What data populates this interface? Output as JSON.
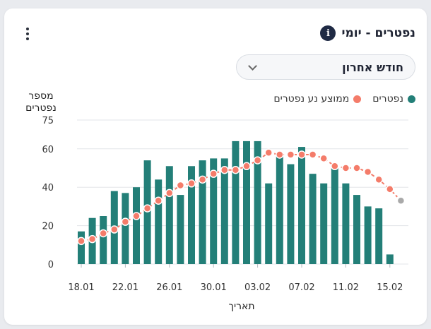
{
  "header": {
    "title": "נפטרים - יומי",
    "info_icon": "info-icon",
    "menu_icon": "kebab-menu-icon"
  },
  "filter": {
    "selected": "חודש אחרון",
    "icon": "chevron-down-icon"
  },
  "colors": {
    "bars": "#237f78",
    "average": "#f47c6a",
    "projected_point": "#a9a9a9",
    "grid": "#e3e5e8"
  },
  "chart_data": {
    "type": "bar",
    "xlabel": "תאריך",
    "ylabel_line1": "מספר",
    "ylabel_line2": "נפטרים",
    "ylim": [
      0,
      75
    ],
    "yticks": [
      0,
      20,
      40,
      60,
      75
    ],
    "grid": true,
    "legend_position": "top-right",
    "x_tick_labels": [
      "18.01",
      "22.01",
      "26.01",
      "30.01",
      "03.02",
      "07.02",
      "11.02",
      "15.02"
    ],
    "dates": [
      "18.01",
      "19.01",
      "20.01",
      "21.01",
      "22.01",
      "23.01",
      "24.01",
      "25.01",
      "26.01",
      "27.01",
      "28.01",
      "29.01",
      "30.01",
      "31.01",
      "01.02",
      "02.02",
      "03.02",
      "04.02",
      "05.02",
      "06.02",
      "07.02",
      "08.02",
      "09.02",
      "10.02",
      "11.02",
      "12.02",
      "13.02",
      "14.02",
      "15.02",
      "16.02"
    ],
    "series": [
      {
        "name": "נפטרים",
        "kind": "bar",
        "values": [
          17,
          24,
          25,
          38,
          37,
          40,
          54,
          44,
          51,
          36,
          51,
          54,
          55,
          55,
          64,
          64,
          64,
          42,
          57,
          52,
          61,
          47,
          42,
          50,
          42,
          36,
          30,
          29,
          5,
          null
        ]
      },
      {
        "name": "ממוצע נע נפטרים",
        "kind": "line",
        "values": [
          12,
          13,
          16,
          18,
          22,
          25,
          29,
          33,
          37,
          41,
          42,
          44,
          47,
          49,
          49,
          51,
          54,
          58,
          57,
          57,
          57,
          57,
          55,
          51,
          50,
          50,
          48,
          44,
          39,
          33
        ]
      }
    ],
    "projected_last_point": true
  }
}
